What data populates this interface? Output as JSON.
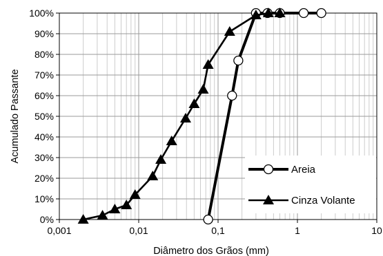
{
  "chart_data": {
    "type": "line",
    "xlabel": "Diâmetro dos Grãos (mm)",
    "ylabel": "Acumulado Passante",
    "x_scale": "log",
    "xlim": [
      0.001,
      10
    ],
    "ylim": [
      0,
      100
    ],
    "x_tick_labels": [
      "0,001",
      "0,01",
      "0,1",
      "1",
      "10"
    ],
    "y_tick_labels": [
      "0%",
      "10%",
      "20%",
      "30%",
      "40%",
      "50%",
      "60%",
      "70%",
      "80%",
      "90%",
      "100%"
    ],
    "grid": true,
    "legend_position": "bottom-right",
    "series": [
      {
        "name": "Areia",
        "marker": "circle",
        "color": "#000000",
        "x": [
          0.075,
          0.15,
          0.18,
          0.3,
          0.42,
          0.6,
          1.2,
          2.0
        ],
        "y": [
          0,
          60,
          77,
          100,
          100,
          100,
          100,
          100
        ]
      },
      {
        "name": "Cinza Volante",
        "marker": "triangle",
        "color": "#000000",
        "x": [
          0.002,
          0.0035,
          0.005,
          0.007,
          0.009,
          0.015,
          0.019,
          0.026,
          0.039,
          0.05,
          0.065,
          0.075,
          0.14,
          0.3,
          0.43,
          0.6
        ],
        "y": [
          0,
          2,
          5,
          7,
          12,
          21,
          29,
          38,
          49,
          56,
          63,
          75,
          91,
          99,
          100,
          100
        ]
      }
    ]
  }
}
